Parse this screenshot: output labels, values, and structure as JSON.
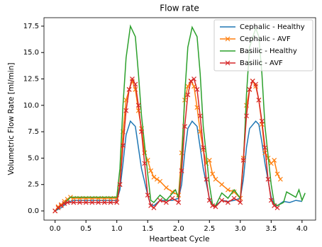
{
  "chart_data": {
    "type": "line",
    "title": "Flow rate",
    "xlabel": "Heartbeat Cycle",
    "ylabel": "Volumetric Flow Rate [ml/min]",
    "xlim": [
      -0.18,
      4.22
    ],
    "ylim": [
      -0.87,
      18.3
    ],
    "xticks": [
      {
        "value": 0,
        "label": "0.0"
      },
      {
        "value": 0.5,
        "label": "0.5"
      },
      {
        "value": 1,
        "label": "1.0"
      },
      {
        "value": 1.5,
        "label": "1.5"
      },
      {
        "value": 2,
        "label": "2.0"
      },
      {
        "value": 2.5,
        "label": "2.5"
      },
      {
        "value": 3,
        "label": "3.0"
      },
      {
        "value": 3.5,
        "label": "3.5"
      },
      {
        "value": 4,
        "label": "4.0"
      }
    ],
    "yticks": [
      {
        "value": 0,
        "label": "0.0"
      },
      {
        "value": 2.5,
        "label": "2.5"
      },
      {
        "value": 5,
        "label": "5.0"
      },
      {
        "value": 7.5,
        "label": "7.5"
      },
      {
        "value": 10,
        "label": "10.0"
      },
      {
        "value": 12.5,
        "label": "12.5"
      },
      {
        "value": 15,
        "label": "15.0"
      },
      {
        "value": 17.5,
        "label": "17.5"
      }
    ],
    "legend": "upper right",
    "series": [
      {
        "name": "Cephalic - Healthy",
        "color": "#1f77b4",
        "marker": "none",
        "x": [
          0,
          0.1,
          0.2,
          0.3,
          0.5,
          0.7,
          0.9,
          1.0,
          1.05,
          1.1,
          1.15,
          1.22,
          1.3,
          1.35,
          1.4,
          1.5,
          1.55,
          1.6,
          1.7,
          1.8,
          1.9,
          2.0,
          2.05,
          2.1,
          2.15,
          2.22,
          2.3,
          2.35,
          2.4,
          2.5,
          2.55,
          2.6,
          2.7,
          2.8,
          2.9,
          3.0,
          3.05,
          3.1,
          3.15,
          3.25,
          3.3,
          3.35,
          3.4,
          3.5,
          3.55,
          3.6,
          3.7,
          3.8,
          3.9,
          4.0
        ],
        "values": [
          0,
          0.3,
          0.8,
          1.0,
          1.0,
          1.0,
          1.0,
          1.0,
          2,
          4.5,
          7.2,
          8.5,
          8.0,
          6,
          4,
          1.5,
          0.6,
          0.5,
          1.0,
          1.0,
          1.0,
          1.2,
          2.5,
          5.5,
          7.8,
          8.5,
          8,
          6,
          4,
          1.2,
          0.5,
          0.5,
          1.0,
          0.9,
          1.0,
          1.2,
          3,
          6,
          7.8,
          8.5,
          8.2,
          6.5,
          4.5,
          1.3,
          0.5,
          0.5,
          0.9,
          0.8,
          1.0,
          0.9
        ]
      },
      {
        "name": "Cephalic - AVF",
        "color": "#ff7f0e",
        "marker": "x",
        "x": [
          0,
          0.05,
          0.1,
          0.15,
          0.2,
          0.25,
          0.3,
          0.4,
          0.5,
          0.6,
          0.7,
          0.8,
          0.9,
          1.0,
          1.05,
          1.1,
          1.15,
          1.2,
          1.25,
          1.3,
          1.35,
          1.4,
          1.45,
          1.5,
          1.55,
          1.6,
          1.65,
          1.7,
          1.8,
          1.9,
          2.0,
          2.05,
          2.1,
          2.15,
          2.2,
          2.25,
          2.3,
          2.35,
          2.4,
          2.45,
          2.5,
          2.55,
          2.6,
          2.7,
          2.8,
          2.9,
          3.0,
          3.05,
          3.1,
          3.15,
          3.2,
          3.25,
          3.3,
          3.35,
          3.4,
          3.45,
          3.5,
          3.55,
          3.6,
          3.65
        ],
        "values": [
          0,
          0.4,
          0.6,
          0.9,
          1.1,
          1.3,
          1.2,
          1.2,
          1.2,
          1.2,
          1.2,
          1.2,
          1.2,
          1.2,
          2.5,
          7.5,
          10.5,
          11.5,
          12.3,
          11.5,
          9.5,
          7.8,
          5.5,
          4.8,
          3.8,
          3.2,
          3.0,
          2.8,
          2.2,
          1.8,
          1.5,
          5.5,
          10.5,
          11.8,
          12.3,
          11.8,
          9.8,
          7.5,
          5.8,
          4.5,
          4.8,
          3.5,
          3,
          2.5,
          2,
          1.8,
          1.2,
          5,
          10,
          11.5,
          12.3,
          11.8,
          10.5,
          8.2,
          5.5,
          5,
          4.5,
          4.8,
          3.5,
          3
        ]
      },
      {
        "name": "Basilic - Healthy",
        "color": "#2ca02c",
        "marker": "none",
        "x": [
          0,
          0.1,
          0.2,
          0.25,
          0.5,
          0.75,
          1.0,
          1.05,
          1.1,
          1.15,
          1.22,
          1.3,
          1.35,
          1.4,
          1.5,
          1.55,
          1.6,
          1.7,
          1.8,
          1.95,
          2.0,
          2.05,
          2.1,
          2.15,
          2.22,
          2.3,
          2.35,
          2.4,
          2.5,
          2.55,
          2.6,
          2.7,
          2.8,
          2.9,
          3.0,
          3.05,
          3.1,
          3.15,
          3.25,
          3.3,
          3.35,
          3.4,
          3.5,
          3.55,
          3.6,
          3.7,
          3.75,
          3.9,
          3.95,
          4.0,
          4.05
        ],
        "values": [
          0,
          0.5,
          1.0,
          1.3,
          1.3,
          1.3,
          1.3,
          4,
          10,
          14.5,
          17.5,
          16.5,
          13,
          9,
          3.5,
          1,
          0.8,
          1.5,
          1.0,
          2.0,
          1.2,
          4.5,
          11,
          15.5,
          17.4,
          16.5,
          13,
          8,
          2.5,
          0.6,
          0.5,
          1.7,
          1.2,
          2.0,
          1.2,
          4.5,
          11,
          15.5,
          17.3,
          16.5,
          13,
          8,
          2.5,
          0.7,
          0.5,
          0.8,
          1.8,
          1.3,
          2.0,
          1.0,
          1.7
        ]
      },
      {
        "name": "Basilic - AVF",
        "color": "#d62728",
        "marker": "x",
        "x": [
          0,
          0.05,
          0.1,
          0.15,
          0.2,
          0.3,
          0.4,
          0.5,
          0.6,
          0.7,
          0.8,
          0.9,
          1.0,
          1.05,
          1.1,
          1.15,
          1.2,
          1.25,
          1.3,
          1.35,
          1.4,
          1.45,
          1.5,
          1.55,
          1.6,
          1.7,
          1.8,
          1.9,
          2.0,
          2.05,
          2.1,
          2.15,
          2.2,
          2.25,
          2.3,
          2.35,
          2.4,
          2.45,
          2.5,
          2.55,
          2.6,
          2.7,
          2.8,
          2.9,
          3.0,
          3.05,
          3.1,
          3.15,
          3.2,
          3.25,
          3.3,
          3.35,
          3.4,
          3.45,
          3.5,
          3.55,
          3.6
        ],
        "values": [
          0,
          0.3,
          0.5,
          0.7,
          0.8,
          0.8,
          0.8,
          0.8,
          0.8,
          0.8,
          0.8,
          0.8,
          0.8,
          2.5,
          6.2,
          9.5,
          11.5,
          12.5,
          12,
          10,
          7.5,
          4.5,
          1.5,
          0.5,
          0.3,
          1,
          0.8,
          1.2,
          0.8,
          3.8,
          8,
          11,
          12.3,
          12.5,
          11.5,
          9,
          6,
          3,
          1,
          0.5,
          0.4,
          1,
          0.8,
          1.2,
          0.8,
          4.8,
          9,
          11.5,
          12.3,
          12,
          10.5,
          8.5,
          6,
          3,
          1,
          0.5,
          0.3
        ]
      }
    ]
  }
}
